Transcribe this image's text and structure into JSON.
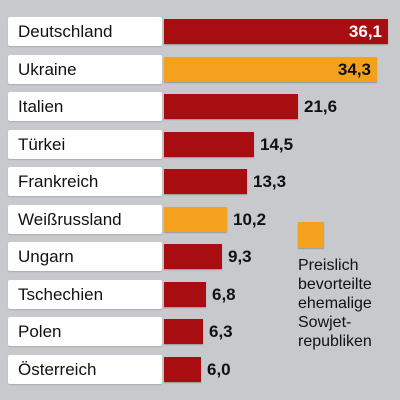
{
  "chart_data": {
    "type": "bar",
    "orientation": "horizontal",
    "categories": [
      "Deutschland",
      "Ukraine",
      "Italien",
      "Türkei",
      "Frankreich",
      "Weißrussland",
      "Ungarn",
      "Tschechien",
      "Polen",
      "Österreich"
    ],
    "values": [
      36.1,
      34.3,
      21.6,
      14.5,
      13.3,
      10.2,
      9.3,
      6.8,
      6.3,
      6.0
    ],
    "value_labels": [
      "36,1",
      "34,3",
      "21,6",
      "14,5",
      "13,3",
      "10,2",
      "9,3",
      "6,8",
      "6,3",
      "6,0"
    ],
    "groups": [
      "default",
      "ex-soviet",
      "default",
      "default",
      "default",
      "ex-soviet",
      "default",
      "default",
      "default",
      "default"
    ],
    "title": "",
    "xlabel": "",
    "ylabel": "",
    "xlim": [
      0,
      36.1
    ],
    "grid": false,
    "legend": {
      "placement": "right",
      "entries": [
        {
          "group": "ex-soviet",
          "lines": [
            "Preislich",
            "bevorteilte",
            "ehemalige",
            "Sowjet-",
            "republiken"
          ]
        }
      ]
    }
  },
  "colors": {
    "default_bar": "#a80d12",
    "highlight_bar": "#f4a21d",
    "background": "#c8c9cc"
  }
}
